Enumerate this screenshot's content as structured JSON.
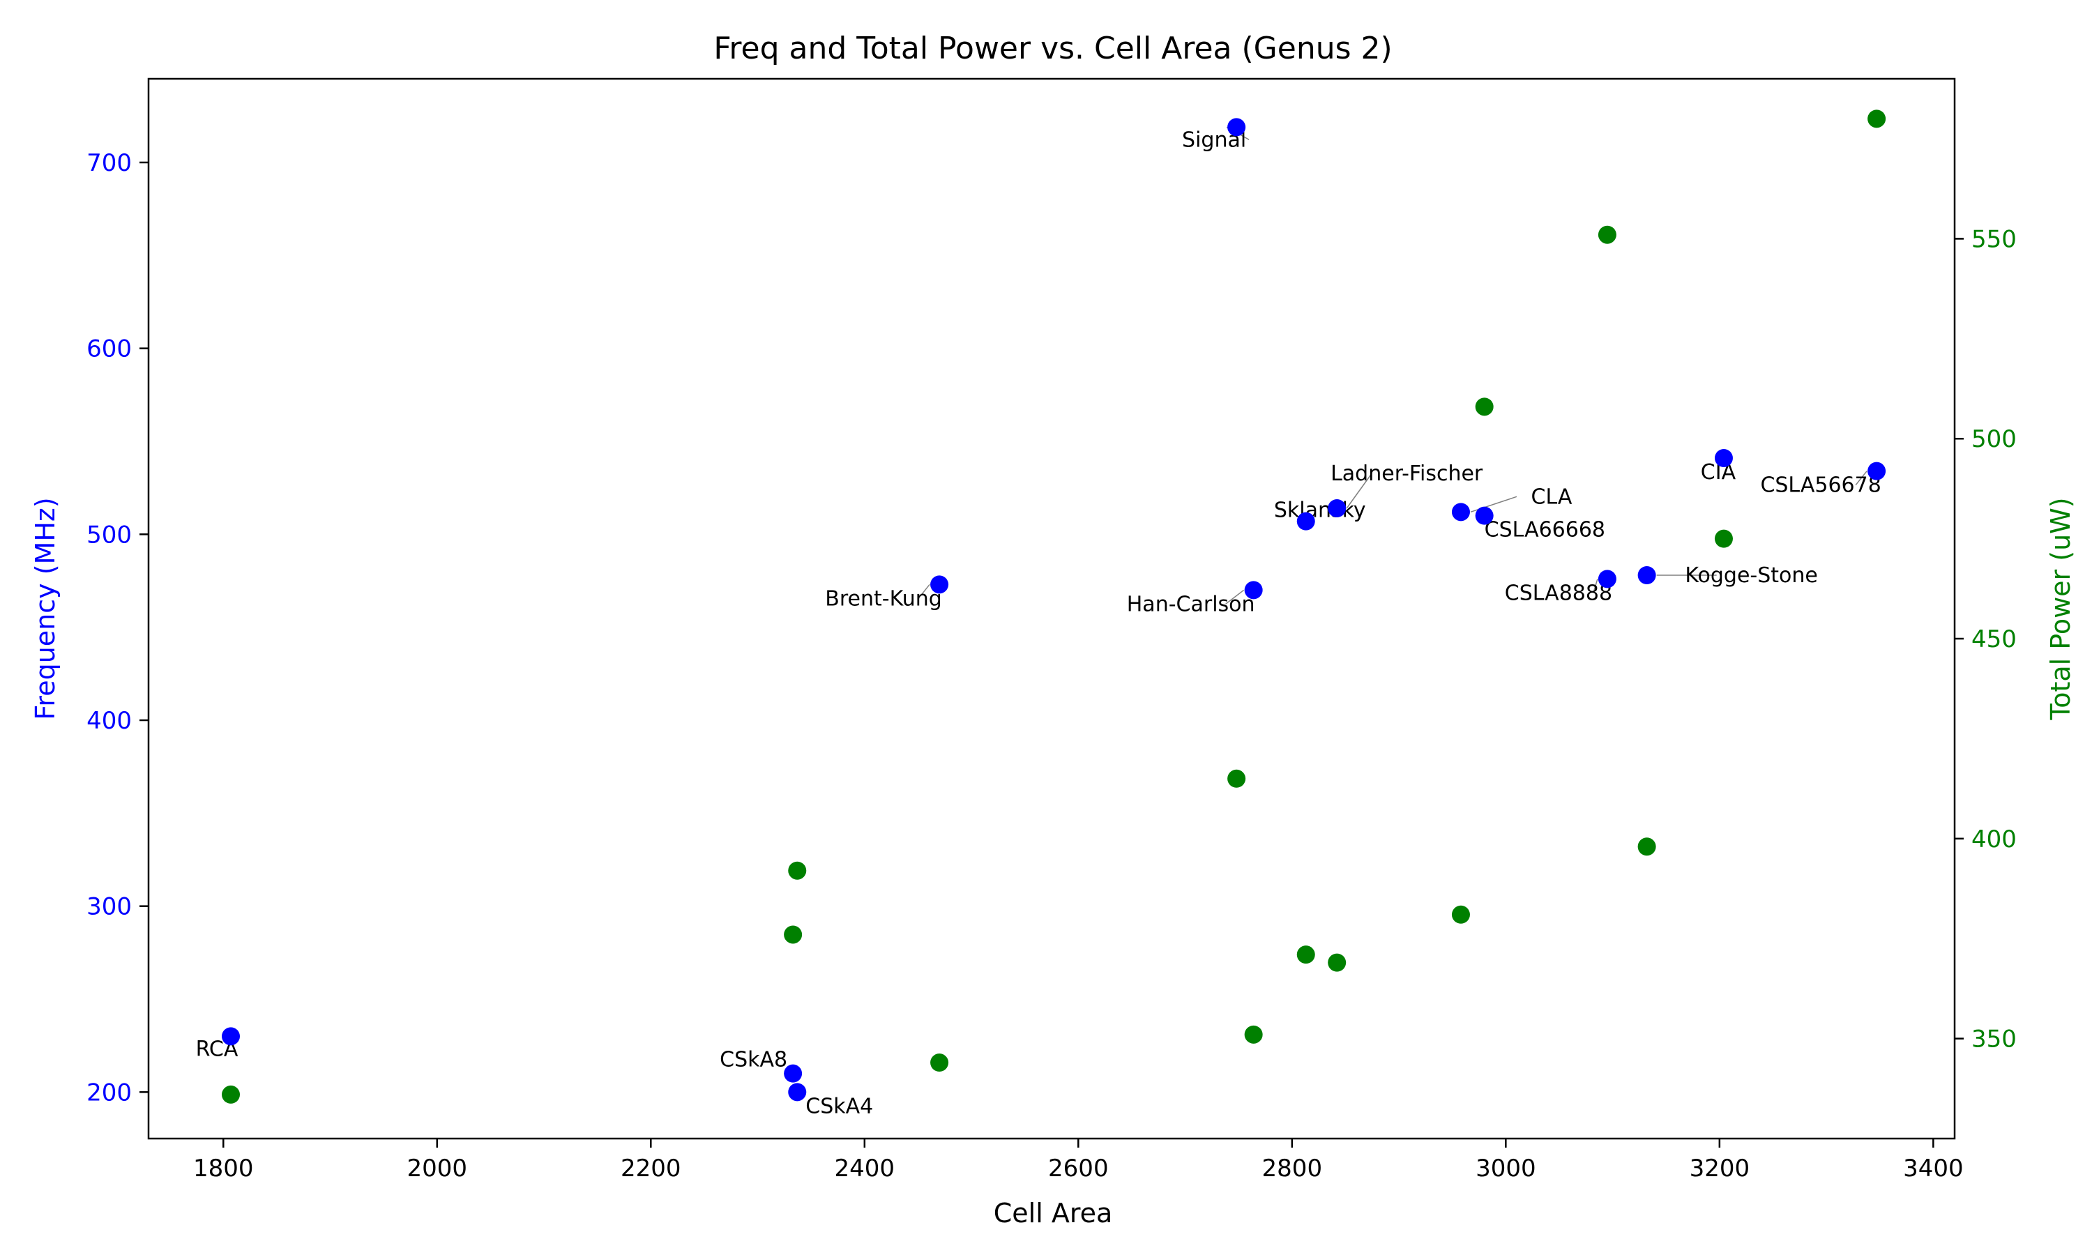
{
  "chart_data": {
    "type": "scatter",
    "title": "Freq and Total Power vs. Cell Area (Genus 2)",
    "xlabel": "Cell Area",
    "ylabel_left": "Frequency (MHz)",
    "ylabel_right": "Total Power (uW)",
    "xlim": [
      1730,
      3420
    ],
    "ylim_left": [
      175,
      745
    ],
    "ylim_right": [
      325,
      590
    ],
    "x_ticks": [
      1800,
      2000,
      2200,
      2400,
      2600,
      2800,
      3000,
      3200,
      3400
    ],
    "y_ticks_left": [
      200,
      300,
      400,
      500,
      600,
      700
    ],
    "y_ticks_right": [
      350,
      400,
      450,
      500,
      550
    ],
    "grid": false,
    "colors": {
      "frequency": "#0000ff",
      "power": "#008000",
      "axis": "#000000",
      "arrow": "#808080"
    },
    "series": [
      {
        "axis": "left",
        "color": "#0000ff",
        "points": [
          {
            "label": "RCA",
            "x": 1807,
            "y": 230
          },
          {
            "label": "CSkA8",
            "x": 2333,
            "y": 210
          },
          {
            "label": "CSkA4",
            "x": 2337,
            "y": 200
          },
          {
            "label": "Brent-Kung",
            "x": 2470,
            "y": 473
          },
          {
            "label": "Signal",
            "x": 2748,
            "y": 719
          },
          {
            "label": "Han-Carlson",
            "x": 2764,
            "y": 470
          },
          {
            "label": "Sklansky",
            "x": 2813,
            "y": 507
          },
          {
            "label": "Ladner-Fischer",
            "x": 2842,
            "y": 514
          },
          {
            "label": "CLA",
            "x": 2958,
            "y": 512
          },
          {
            "label": "CSLA66668",
            "x": 2980,
            "y": 510
          },
          {
            "label": "CSLA8888",
            "x": 3095,
            "y": 476
          },
          {
            "label": "Kogge-Stone",
            "x": 3132,
            "y": 478
          },
          {
            "label": "CIA",
            "x": 3204,
            "y": 541
          },
          {
            "label": "CSLA56678",
            "x": 3347,
            "y": 534
          }
        ]
      },
      {
        "axis": "right",
        "color": "#008000",
        "points": [
          {
            "x": 1807,
            "y": 336
          },
          {
            "x": 2333,
            "y": 376
          },
          {
            "x": 2337,
            "y": 392
          },
          {
            "x": 2470,
            "y": 344
          },
          {
            "x": 2748,
            "y": 415
          },
          {
            "x": 2764,
            "y": 351
          },
          {
            "x": 2813,
            "y": 371
          },
          {
            "x": 2842,
            "y": 369
          },
          {
            "x": 2958,
            "y": 381
          },
          {
            "x": 2980,
            "y": 508
          },
          {
            "x": 3095,
            "y": 551
          },
          {
            "x": 3132,
            "y": 398
          },
          {
            "x": 3204,
            "y": 475
          },
          {
            "x": 3347,
            "y": 580
          }
        ]
      }
    ]
  }
}
